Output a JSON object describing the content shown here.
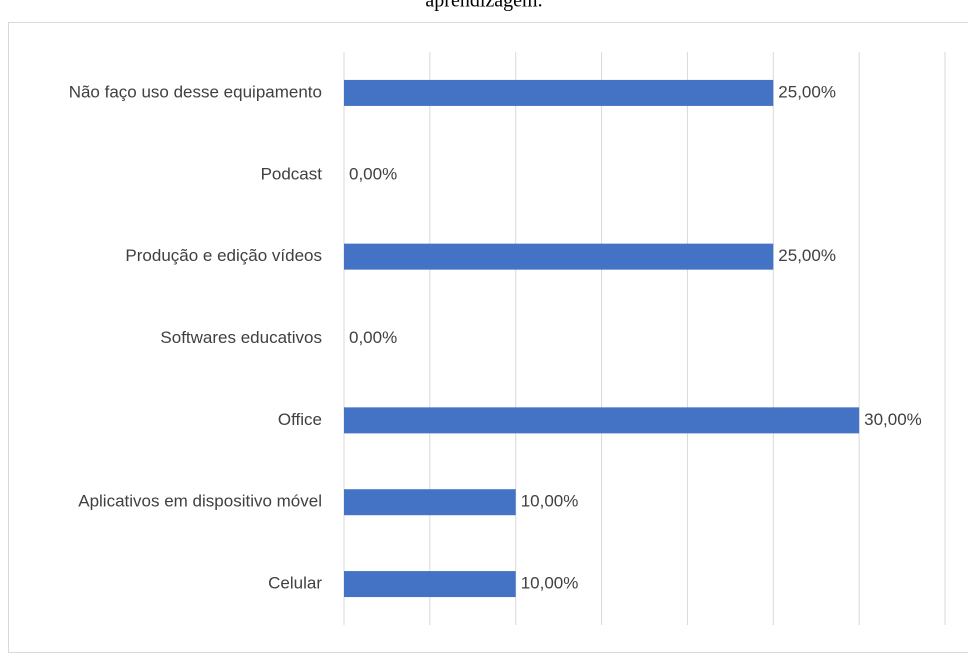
{
  "chart_data": {
    "type": "bar",
    "orientation": "horizontal",
    "title": "aprendizagem.",
    "categories": [
      "Não faço uso desse equipamento",
      "Podcast",
      "Produção e edição vídeos",
      "Softwares educativos",
      "Office",
      "Aplicativos em dispositivo móvel",
      "Celular"
    ],
    "values": [
      25,
      0,
      25,
      0,
      30,
      10,
      10
    ],
    "value_labels": [
      "25,00%",
      "0,00%",
      "25,00%",
      "0,00%",
      "30,00%",
      "10,00%",
      "10,00%"
    ],
    "color": "#4472c4",
    "xlim": [
      0,
      35
    ],
    "xticks": [
      0,
      5,
      10,
      15,
      20,
      25,
      30,
      35
    ],
    "grid": true
  }
}
